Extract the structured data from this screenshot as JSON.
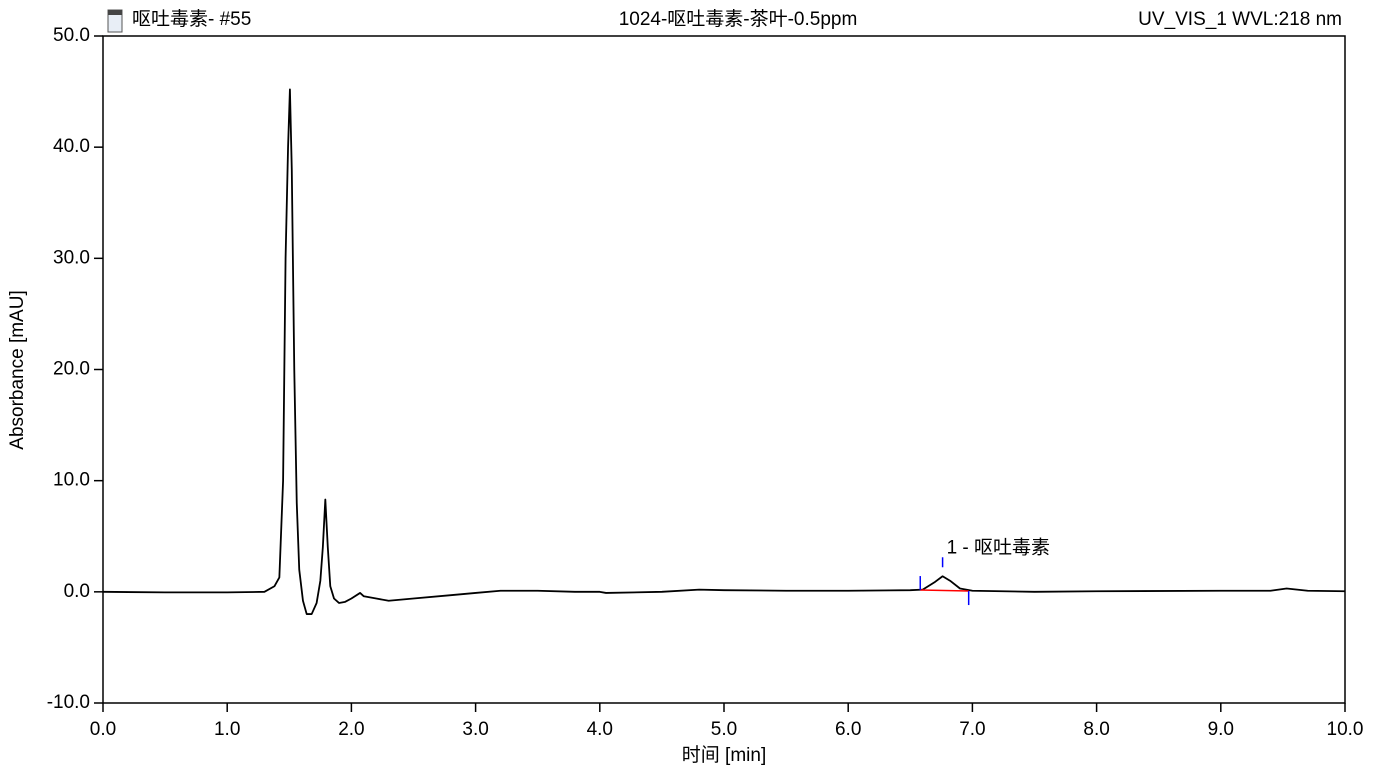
{
  "chart_data": {
    "type": "line",
    "sample": "呕吐毒素- #55",
    "title": "1024-呕吐毒素-茶叶-0.5ppm",
    "channel": "UV_VIS_1 WVL:218 nm",
    "xlabel": "时间 [min]",
    "ylabel": "Absorbance [mAU]",
    "color": "#000000",
    "grid": false,
    "x": [
      0.0,
      0.5,
      1.0,
      1.3,
      1.38,
      1.42,
      1.45,
      1.47,
      1.49,
      1.505,
      1.52,
      1.54,
      1.56,
      1.58,
      1.61,
      1.64,
      1.68,
      1.72,
      1.75,
      1.77,
      1.79,
      1.81,
      1.83,
      1.86,
      1.9,
      1.95,
      2.0,
      2.07,
      2.1,
      2.2,
      2.3,
      2.5,
      2.8,
      3.0,
      3.2,
      3.5,
      3.8,
      4.0,
      4.05,
      4.5,
      4.8,
      5.0,
      5.5,
      6.0,
      6.5,
      6.6,
      6.7,
      6.76,
      6.82,
      6.9,
      7.0,
      7.5,
      8.0,
      9.0,
      9.4,
      9.53,
      9.7,
      10.0
    ],
    "values": [
      0.0,
      -0.05,
      -0.05,
      0.0,
      0.5,
      1.3,
      10,
      30,
      40,
      45.2,
      38,
      20,
      8,
      2,
      -0.8,
      -2.0,
      -2.0,
      -1.0,
      1.0,
      4,
      8.3,
      4,
      0.5,
      -0.6,
      -1.0,
      -0.9,
      -0.6,
      -0.1,
      -0.4,
      -0.6,
      -0.8,
      -0.6,
      -0.3,
      -0.1,
      0.1,
      0.1,
      0.0,
      0.0,
      -0.1,
      0.0,
      0.2,
      0.15,
      0.1,
      0.1,
      0.15,
      0.2,
      0.9,
      1.4,
      1.0,
      0.3,
      0.1,
      0.0,
      0.05,
      0.1,
      0.1,
      0.3,
      0.1,
      0.05
    ],
    "xlim": [
      0,
      10
    ],
    "ylim": [
      -10,
      50
    ],
    "xticks": [
      {
        "value": 0,
        "label": "0.0"
      },
      {
        "value": 1,
        "label": "1.0"
      },
      {
        "value": 2,
        "label": "2.0"
      },
      {
        "value": 3,
        "label": "3.0"
      },
      {
        "value": 4,
        "label": "4.0"
      },
      {
        "value": 5,
        "label": "5.0"
      },
      {
        "value": 6,
        "label": "6.0"
      },
      {
        "value": 7,
        "label": "7.0"
      },
      {
        "value": 8,
        "label": "8.0"
      },
      {
        "value": 9,
        "label": "9.0"
      },
      {
        "value": 10,
        "label": "10.0"
      }
    ],
    "yticks": [
      {
        "value": -10,
        "label": "-10.0"
      },
      {
        "value": 0,
        "label": "0.0"
      },
      {
        "value": 10,
        "label": "10.0"
      },
      {
        "value": 20,
        "label": "20.0"
      },
      {
        "value": 30,
        "label": "30.0"
      },
      {
        "value": 40,
        "label": "40.0"
      },
      {
        "value": 50,
        "label": "50.0"
      }
    ],
    "peak": {
      "label": "1 - 呕吐毒素",
      "start": 6.58,
      "apex": 6.76,
      "end": 6.97,
      "baseline": [
        0.16,
        0.07
      ],
      "baseline_color": "#ff0000",
      "marker_color": "#0000ff"
    }
  }
}
